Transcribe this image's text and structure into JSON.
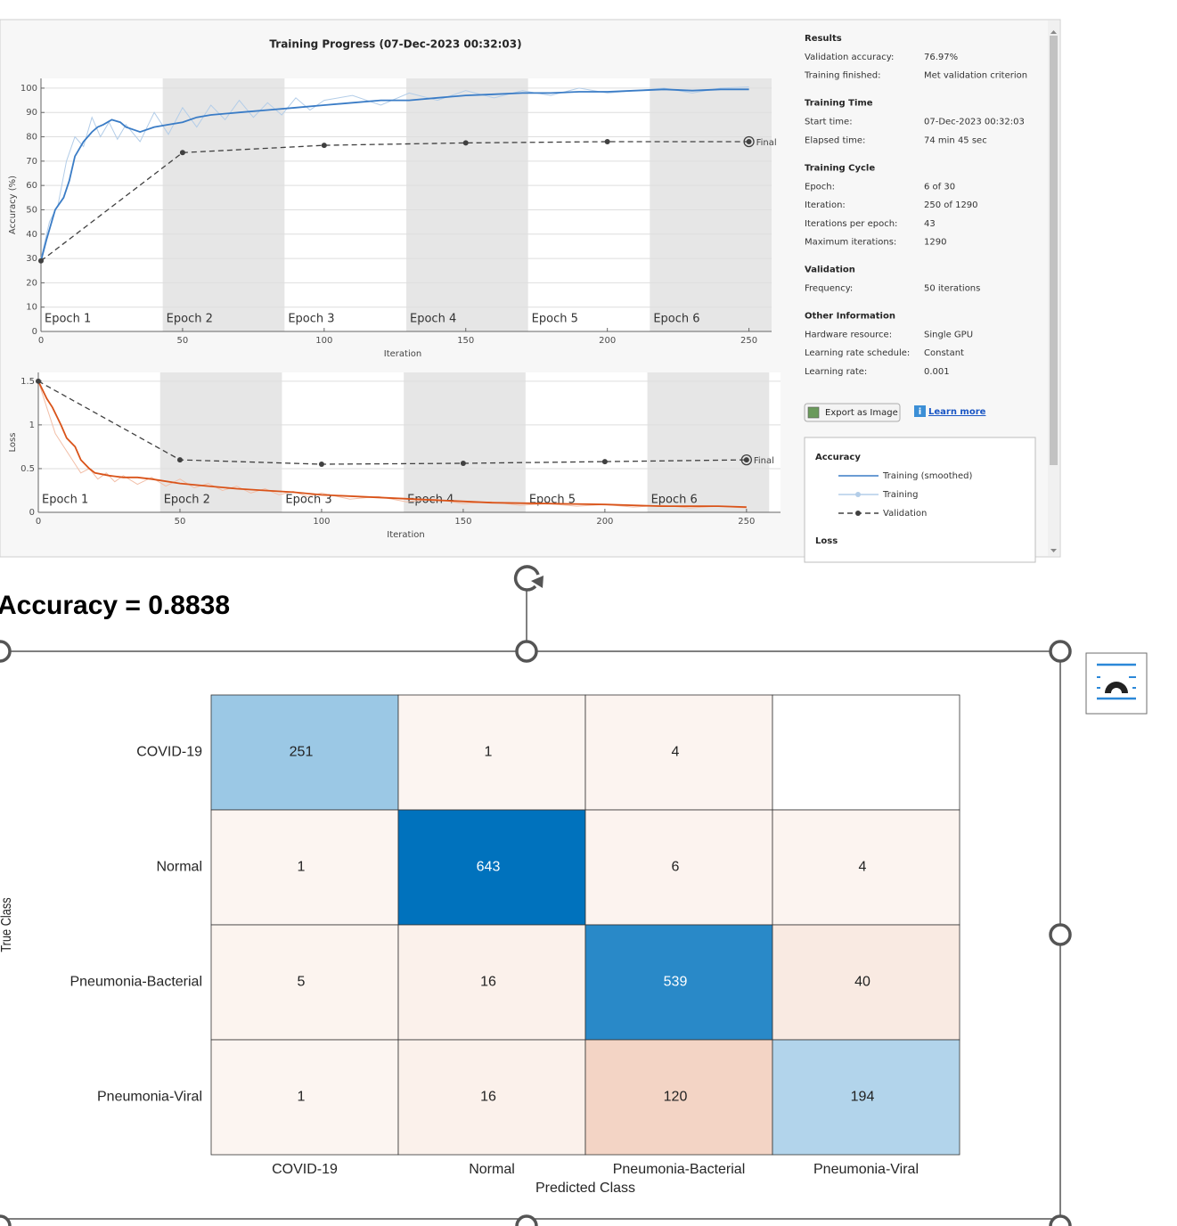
{
  "training_progress": {
    "title": "Training Progress (07-Dec-2023 00:32:03)",
    "epochs": [
      "Epoch 1",
      "Epoch 2",
      "Epoch 3",
      "Epoch 4",
      "Epoch 5",
      "Epoch 6"
    ],
    "final_label": "Final",
    "accuracy_plot": {
      "type": "line",
      "ylabel": "Accuracy (%)",
      "xlabel": "Iteration",
      "xlim": [
        0,
        258
      ],
      "ylim": [
        0,
        104
      ],
      "xticks": [
        0,
        50,
        100,
        150,
        200,
        250
      ],
      "yticks": [
        0,
        10,
        20,
        30,
        40,
        50,
        60,
        70,
        80,
        90,
        100
      ],
      "grid": true,
      "series": [
        {
          "name": "Training (smoothed)",
          "color": "#3a7cc6",
          "x": [
            0,
            2,
            5,
            8,
            10,
            12,
            15,
            18,
            20,
            22,
            25,
            28,
            30,
            35,
            40,
            45,
            50,
            55,
            60,
            70,
            80,
            90,
            100,
            110,
            120,
            130,
            140,
            150,
            160,
            170,
            180,
            190,
            200,
            210,
            220,
            230,
            240,
            250
          ],
          "values": [
            29,
            38,
            50,
            55,
            62,
            72,
            78,
            82,
            84,
            85,
            87,
            86,
            84,
            82,
            84,
            85,
            86,
            88,
            89,
            90,
            91,
            92,
            93,
            94,
            95,
            95,
            96,
            97,
            97.5,
            98,
            98,
            98.5,
            98.5,
            99,
            99.5,
            99,
            99.5,
            99.5
          ]
        },
        {
          "name": "Training",
          "color": "#b3cde8",
          "x": [
            0,
            3,
            6,
            9,
            12,
            15,
            18,
            21,
            24,
            27,
            30,
            35,
            40,
            45,
            50,
            55,
            60,
            65,
            70,
            75,
            80,
            85,
            90,
            95,
            100,
            110,
            120,
            130,
            140,
            150,
            160,
            170,
            180,
            190,
            200,
            210,
            220,
            230,
            240,
            250
          ],
          "values": [
            30,
            45,
            52,
            70,
            80,
            76,
            88,
            80,
            86,
            79,
            85,
            78,
            90,
            81,
            92,
            84,
            93,
            87,
            95,
            88,
            94,
            89,
            96,
            91,
            95,
            97,
            93,
            98,
            95,
            99,
            96,
            99,
            97,
            100,
            98,
            99,
            100,
            98,
            100,
            100.5
          ]
        },
        {
          "name": "Validation",
          "color": "#404040",
          "x": [
            0,
            50,
            100,
            150,
            200,
            250
          ],
          "values": [
            29,
            73.5,
            76.5,
            77.5,
            78,
            78
          ]
        }
      ]
    },
    "loss_plot": {
      "type": "line",
      "ylabel": "Loss",
      "xlabel": "Iteration",
      "xlim": [
        0,
        262
      ],
      "ylim": [
        0,
        1.6
      ],
      "xticks": [
        0,
        50,
        100,
        150,
        200,
        250
      ],
      "yticks": [
        0,
        0.5,
        1,
        1.5
      ],
      "grid": true,
      "series": [
        {
          "color": "#d95319",
          "x": [
            0,
            3,
            5,
            8,
            10,
            13,
            15,
            18,
            20,
            25,
            30,
            35,
            40,
            50,
            60,
            70,
            80,
            90,
            100,
            120,
            140,
            160,
            180,
            200,
            220,
            240,
            250
          ],
          "values": [
            1.5,
            1.3,
            1.2,
            1.0,
            0.85,
            0.75,
            0.6,
            0.5,
            0.45,
            0.42,
            0.4,
            0.4,
            0.38,
            0.33,
            0.3,
            0.27,
            0.25,
            0.23,
            0.2,
            0.17,
            0.14,
            0.11,
            0.1,
            0.09,
            0.07,
            0.07,
            0.06
          ]
        },
        {
          "color": "#f2bfa8",
          "x": [
            0,
            3,
            6,
            9,
            12,
            15,
            18,
            21,
            24,
            27,
            30,
            35,
            40,
            45,
            50,
            55,
            60,
            65,
            70,
            75,
            80,
            85,
            90,
            95,
            100,
            110,
            120,
            130,
            140,
            150,
            160,
            170,
            180,
            190,
            200,
            210,
            220,
            230,
            240,
            250
          ],
          "values": [
            1.5,
            1.2,
            0.9,
            0.75,
            0.6,
            0.45,
            0.5,
            0.38,
            0.45,
            0.35,
            0.42,
            0.32,
            0.4,
            0.3,
            0.38,
            0.28,
            0.33,
            0.25,
            0.3,
            0.22,
            0.27,
            0.2,
            0.24,
            0.18,
            0.22,
            0.15,
            0.18,
            0.12,
            0.15,
            0.1,
            0.12,
            0.08,
            0.1,
            0.07,
            0.09,
            0.06,
            0.08,
            0.05,
            0.07,
            0.05
          ]
        },
        {
          "color": "#404040",
          "x": [
            0,
            50,
            100,
            150,
            200,
            250
          ],
          "values": [
            1.5,
            0.6,
            0.55,
            0.56,
            0.58,
            0.6
          ]
        }
      ]
    }
  },
  "info_panel": {
    "sections": [
      {
        "heading": "Results",
        "rows": [
          [
            "Validation accuracy:",
            "76.97%"
          ],
          [
            "Training finished:",
            "Met validation criterion"
          ]
        ]
      },
      {
        "heading": "Training Time",
        "rows": [
          [
            "Start time:",
            "07-Dec-2023 00:32:03"
          ],
          [
            "Elapsed time:",
            "74 min 45 sec"
          ]
        ]
      },
      {
        "heading": "Training Cycle",
        "rows": [
          [
            "Epoch:",
            "6 of 30"
          ],
          [
            "Iteration:",
            "250 of 1290"
          ],
          [
            "Iterations per epoch:",
            43
          ],
          [
            "Maximum iterations:",
            "1290"
          ]
        ]
      },
      {
        "heading": "Validation",
        "rows": [
          [
            "Frequency:",
            "50 iterations"
          ]
        ]
      },
      {
        "heading": "Other Information",
        "rows": [
          [
            "Hardware resource:",
            "Single GPU"
          ],
          [
            "Learning rate schedule:",
            "Constant"
          ],
          [
            "Learning rate:",
            "0.001"
          ]
        ]
      }
    ],
    "export_button": "Export as Image",
    "learn_more": "Learn more",
    "legend": {
      "accuracy_heading": "Accuracy",
      "loss_heading": "Loss"
    }
  },
  "heading": "Accuracy = 0.8838",
  "confusion_chart": {
    "row_labels": [
      "COVID-19",
      "Normal",
      "Pneumonia-Bacterial",
      "Pneumonia-Viral"
    ],
    "col_labels": [
      "COVID-19",
      "Normal",
      "Pneumonia-Bacterial",
      "Pneumonia-Viral"
    ],
    "values": [
      [
        251,
        1,
        4,
        null
      ],
      [
        1,
        643,
        6,
        4
      ],
      [
        5,
        16,
        539,
        40
      ],
      [
        1,
        16,
        120,
        194
      ]
    ],
    "xlabel": "Predicted Class",
    "ylabel": "True Class",
    "diagonal_color": "#0072bd",
    "off_diagonal_colors": [
      "#fcf5f1",
      "#f3d4c5"
    ]
  }
}
